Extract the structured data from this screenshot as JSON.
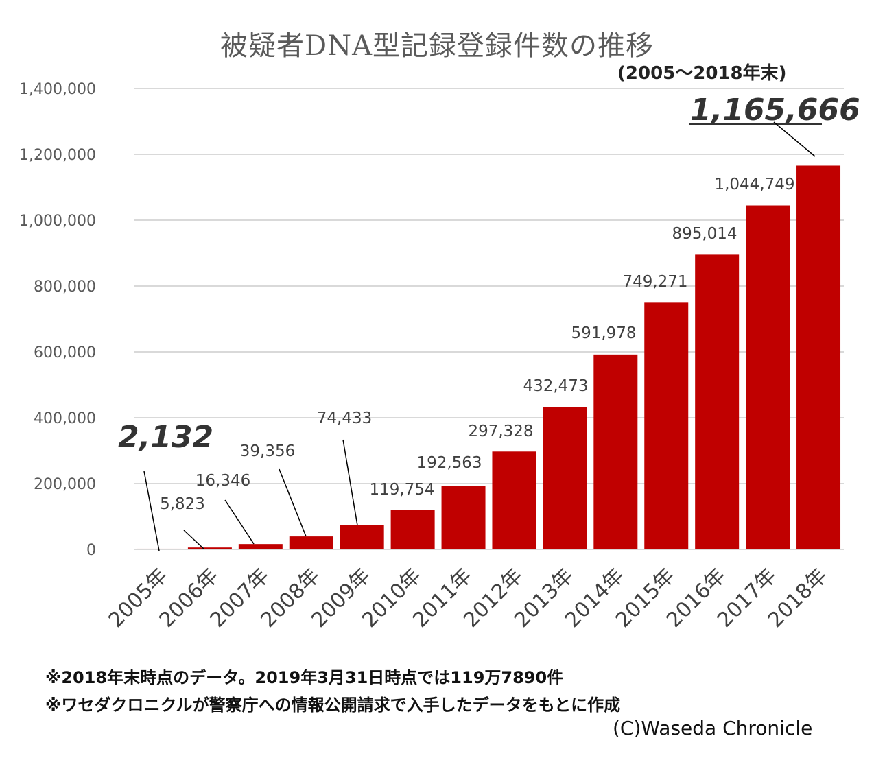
{
  "chart_data": {
    "type": "bar",
    "title": "被疑者DNA型記録登録件数の推移",
    "subtitle": "(2005～2018年末)",
    "categories": [
      "2005年",
      "2006年",
      "2007年",
      "2008年",
      "2009年",
      "2010年",
      "2011年",
      "2012年",
      "2013年",
      "2014年",
      "2015年",
      "2016年",
      "2017年",
      "2018年"
    ],
    "values": [
      2132,
      5823,
      16346,
      39356,
      74433,
      119754,
      192563,
      297328,
      432473,
      591978,
      749271,
      895014,
      1044749,
      1165666
    ],
    "value_labels": [
      "2,132",
      "5,823",
      "16,346",
      "39,356",
      "74,433",
      "119,754",
      "192,563",
      "297,328",
      "432,473",
      "591,978",
      "749,271",
      "895,014",
      "1,044,749",
      "1,165,666"
    ],
    "y_ticks": [
      0,
      200000,
      400000,
      600000,
      800000,
      1000000,
      1200000,
      1400000
    ],
    "y_tick_labels": [
      "0",
      "200,000",
      "400,000",
      "600,000",
      "800,000",
      "1,000,000",
      "1,200,000",
      "1,400,000"
    ],
    "ylim": [
      0,
      1400000
    ],
    "grid": true,
    "bar_color": "#c00000",
    "grid_color": "#d9d9d9",
    "highlight_color": "#333333"
  },
  "notes": {
    "note1": "※2018年末時点のデータ。2019年3月31日時点では119万7890件",
    "note2": "※ワセダクロニクルが警察庁への情報公開請求で入手したデータをもとに作成"
  },
  "credit": "(C)Waseda Chronicle"
}
